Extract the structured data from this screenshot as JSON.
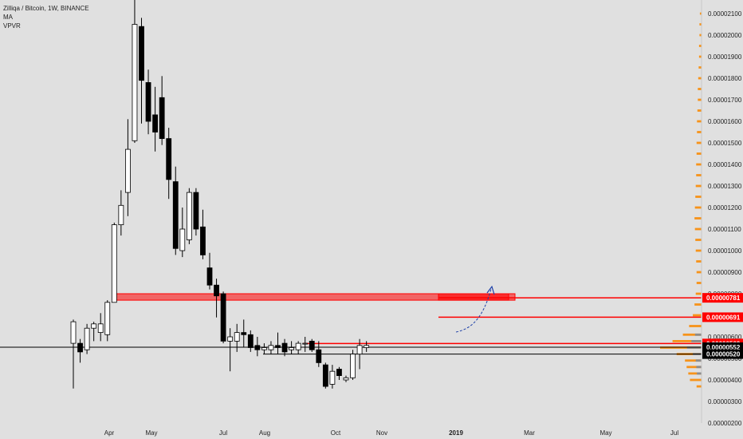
{
  "legend": {
    "title": "Zilliqa / Bitcoin, 1W, BINANCE",
    "ma": "MA",
    "vpvr": "VPVR"
  },
  "colors": {
    "background": "#e0e0e0",
    "bull_candle": "#ffffff",
    "bear_candle": "#000000",
    "zone_red": "#ff0000",
    "volume_profile": "#f7931a",
    "volume_profile_gray": "#8c8c8c",
    "arrow_blue": "#1c3fa8"
  },
  "chart_data": {
    "type": "candlestick",
    "title": "Zilliqa / Bitcoin, 1W, BINANCE",
    "ylim": [
      1.9e-06,
      2.15e-05
    ],
    "y_ticks": [
      "0.00000200",
      "0.00000300",
      "0.00000400",
      "0.00000500",
      "0.00000600",
      "0.00000700",
      "0.00000800",
      "0.00000900",
      "0.00001000",
      "0.00001100",
      "0.00001200",
      "0.00001300",
      "0.00001400",
      "0.00001500",
      "0.00001600",
      "0.00001700",
      "0.00001800",
      "0.00001900",
      "0.00002000",
      "0.00002100"
    ],
    "x_labels": [
      "Apr",
      "May",
      "Jul",
      "Aug",
      "Oct",
      "Nov",
      "2019",
      "Mar",
      "May",
      "Jul"
    ],
    "price_labels": [
      {
        "value": 7.81e-06,
        "text": "0.00000781",
        "style": "red"
      },
      {
        "value": 6.91e-06,
        "text": "0.00000691",
        "style": "red"
      },
      {
        "value": 5.69e-06,
        "text": "0.00000569",
        "style": "red"
      },
      {
        "value": 5.52e-06,
        "text": "0.00000552",
        "style": "black"
      },
      {
        "value": 5.2e-06,
        "text": "0.00000520",
        "style": "black"
      }
    ],
    "candles": [
      {
        "o": 5.7e-06,
        "h": 6.8e-06,
        "l": 3.6e-06,
        "c": 6.7e-06
      },
      {
        "o": 5.7e-06,
        "h": 5.9e-06,
        "l": 4.8e-06,
        "c": 5.3e-06
      },
      {
        "o": 5.4e-06,
        "h": 6.6e-06,
        "l": 5.2e-06,
        "c": 6.4e-06
      },
      {
        "o": 6.4e-06,
        "h": 6.7e-06,
        "l": 5.8e-06,
        "c": 6.6e-06
      },
      {
        "o": 6.2e-06,
        "h": 7.1e-06,
        "l": 5.8e-06,
        "c": 6.6e-06
      },
      {
        "o": 6.1e-06,
        "h": 7.7e-06,
        "l": 5.8e-06,
        "c": 7.6e-06
      },
      {
        "o": 7.6e-06,
        "h": 1.13e-05,
        "l": 7.6e-06,
        "c": 1.12e-05
      },
      {
        "o": 1.12e-05,
        "h": 1.28e-05,
        "l": 1.07e-05,
        "c": 1.21e-05
      },
      {
        "o": 1.27e-05,
        "h": 1.61e-05,
        "l": 1.16e-05,
        "c": 1.47e-05
      },
      {
        "o": 1.51e-05,
        "h": 2.22e-05,
        "l": 1.5e-05,
        "c": 2.05e-05
      },
      {
        "o": 2.04e-05,
        "h": 2.08e-05,
        "l": 1.59e-05,
        "c": 1.79e-05
      },
      {
        "o": 1.78e-05,
        "h": 1.84e-05,
        "l": 1.54e-05,
        "c": 1.6e-05
      },
      {
        "o": 1.63e-05,
        "h": 1.76e-05,
        "l": 1.46e-05,
        "c": 1.55e-05
      },
      {
        "o": 1.71e-05,
        "h": 1.81e-05,
        "l": 1.49e-05,
        "c": 1.52e-05
      },
      {
        "o": 1.52e-05,
        "h": 1.57e-05,
        "l": 1.24e-05,
        "c": 1.33e-05
      },
      {
        "o": 1.32e-05,
        "h": 1.39e-05,
        "l": 9.8e-06,
        "c": 1.01e-05
      },
      {
        "o": 1e-05,
        "h": 1.2e-05,
        "l": 9.7e-06,
        "c": 1.1e-05
      },
      {
        "o": 1.05e-05,
        "h": 1.29e-05,
        "l": 1.03e-05,
        "c": 1.27e-05
      },
      {
        "o": 1.27e-05,
        "h": 1.29e-05,
        "l": 1.07e-05,
        "c": 1.1e-05
      },
      {
        "o": 1.11e-05,
        "h": 1.19e-05,
        "l": 9.6e-06,
        "c": 9.8e-06
      },
      {
        "o": 9.2e-06,
        "h": 9.9e-06,
        "l": 8.2e-06,
        "c": 8.4e-06
      },
      {
        "o": 8.4e-06,
        "h": 8.7e-06,
        "l": 6.9e-06,
        "c": 7.9e-06
      },
      {
        "o": 8e-06,
        "h": 8.1e-06,
        "l": 5.7e-06,
        "c": 5.8e-06
      },
      {
        "o": 5.8e-06,
        "h": 6.4e-06,
        "l": 4.4e-06,
        "c": 6e-06
      },
      {
        "o": 5.8e-06,
        "h": 6.6e-06,
        "l": 5.3e-06,
        "c": 6.2e-06
      },
      {
        "o": 6.2e-06,
        "h": 6.8e-06,
        "l": 5.5e-06,
        "c": 6.1e-06
      },
      {
        "o": 6.1e-06,
        "h": 6.3e-06,
        "l": 5.3e-06,
        "c": 5.5e-06
      },
      {
        "o": 5.6e-06,
        "h": 6e-06,
        "l": 5.1e-06,
        "c": 5.4e-06
      },
      {
        "o": 5.4e-06,
        "h": 5.7e-06,
        "l": 5.2e-06,
        "c": 5.5e-06
      },
      {
        "o": 5.4e-06,
        "h": 5.8e-06,
        "l": 5.2e-06,
        "c": 5.6e-06
      },
      {
        "o": 5.6e-06,
        "h": 6.2e-06,
        "l": 5.2e-06,
        "c": 5.5e-06
      },
      {
        "o": 5.7e-06,
        "h": 5.9e-06,
        "l": 5.1e-06,
        "c": 5.3e-06
      },
      {
        "o": 5.4e-06,
        "h": 5.8e-06,
        "l": 5.2e-06,
        "c": 5.5e-06
      },
      {
        "o": 5.4e-06,
        "h": 5.8e-06,
        "l": 5.2e-06,
        "c": 5.7e-06
      },
      {
        "o": 5.7e-06,
        "h": 6e-06,
        "l": 5.3e-06,
        "c": 5.7e-06
      },
      {
        "o": 5.8e-06,
        "h": 5.9e-06,
        "l": 5.3e-06,
        "c": 5.4e-06
      },
      {
        "o": 5.4e-06,
        "h": 5.8e-06,
        "l": 4.6e-06,
        "c": 4.8e-06
      },
      {
        "o": 4.7e-06,
        "h": 4.8e-06,
        "l": 3.6e-06,
        "c": 3.7e-06
      },
      {
        "o": 3.8e-06,
        "h": 4.7e-06,
        "l": 3.6e-06,
        "c": 4.4e-06
      },
      {
        "o": 4.5e-06,
        "h": 4.6e-06,
        "l": 4e-06,
        "c": 4.2e-06
      },
      {
        "o": 4e-06,
        "h": 4.2e-06,
        "l": 3.9e-06,
        "c": 4.1e-06
      },
      {
        "o": 4.1e-06,
        "h": 5.4e-06,
        "l": 4e-06,
        "c": 5.2e-06
      },
      {
        "o": 5.2e-06,
        "h": 5.9e-06,
        "l": 4.5e-06,
        "c": 5.6e-06
      },
      {
        "o": 5.5e-06,
        "h": 5.8e-06,
        "l": 5.3e-06,
        "c": 5.6e-06
      }
    ],
    "lines": [
      {
        "value": 5.52e-06,
        "color": "black"
      },
      {
        "value": 5.2e-06,
        "color": "black"
      },
      {
        "value": 5.69e-06,
        "color": "red"
      },
      {
        "value": 6.91e-06,
        "color": "red"
      },
      {
        "value": 7.81e-06,
        "color": "red"
      }
    ],
    "zones": [
      {
        "top": 8e-06,
        "bottom": 7.7e-06,
        "color": "red"
      },
      {
        "top": 8e-06,
        "bottom": 7.7e-06,
        "color": "red"
      }
    ],
    "volume_profile": [
      {
        "price": 2.1e-05,
        "vol": 0.04
      },
      {
        "price": 2.05e-05,
        "vol": 0.05
      },
      {
        "price": 2e-05,
        "vol": 0.05
      },
      {
        "price": 1.95e-05,
        "vol": 0.06
      },
      {
        "price": 1.9e-05,
        "vol": 0.06
      },
      {
        "price": 1.85e-05,
        "vol": 0.07
      },
      {
        "price": 1.8e-05,
        "vol": 0.08
      },
      {
        "price": 1.75e-05,
        "vol": 0.09
      },
      {
        "price": 1.7e-05,
        "vol": 0.09
      },
      {
        "price": 1.65e-05,
        "vol": 0.1
      },
      {
        "price": 1.6e-05,
        "vol": 0.11
      },
      {
        "price": 1.55e-05,
        "vol": 0.11
      },
      {
        "price": 1.5e-05,
        "vol": 0.12
      },
      {
        "price": 1.45e-05,
        "vol": 0.12
      },
      {
        "price": 1.4e-05,
        "vol": 0.13
      },
      {
        "price": 1.35e-05,
        "vol": 0.13
      },
      {
        "price": 1.3e-05,
        "vol": 0.14
      },
      {
        "price": 1.25e-05,
        "vol": 0.15
      },
      {
        "price": 1.2e-05,
        "vol": 0.16
      },
      {
        "price": 1.15e-05,
        "vol": 0.17
      },
      {
        "price": 1.1e-05,
        "vol": 0.16
      },
      {
        "price": 1.05e-05,
        "vol": 0.15
      },
      {
        "price": 1e-05,
        "vol": 0.14
      },
      {
        "price": 9.5e-06,
        "vol": 0.13
      },
      {
        "price": 9e-06,
        "vol": 0.12
      },
      {
        "price": 8.5e-06,
        "vol": 0.12
      },
      {
        "price": 8e-06,
        "vol": 0.14
      },
      {
        "price": 7.5e-06,
        "vol": 0.17
      },
      {
        "price": 7e-06,
        "vol": 0.21
      },
      {
        "price": 6.5e-06,
        "vol": 0.3
      },
      {
        "price": 6.1e-06,
        "vol": 0.45
      },
      {
        "price": 5.8e-06,
        "vol": 0.7
      },
      {
        "price": 5.5e-06,
        "vol": 1.0
      },
      {
        "price": 5.2e-06,
        "vol": 0.6
      },
      {
        "price": 4.9e-06,
        "vol": 0.4
      },
      {
        "price": 4.6e-06,
        "vol": 0.36
      },
      {
        "price": 4.3e-06,
        "vol": 0.32
      },
      {
        "price": 4e-06,
        "vol": 0.28
      },
      {
        "price": 3.7e-06,
        "vol": 0.12
      }
    ]
  }
}
